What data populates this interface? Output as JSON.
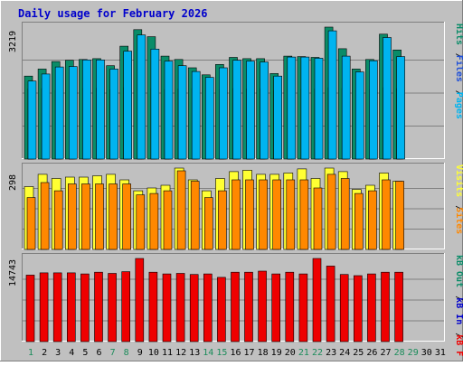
{
  "title": "Daily usage for February 2026",
  "colors": {
    "background": "#c0c0c0",
    "title": "#0000cc",
    "hits": "#0a8c68",
    "files": "#1e4fd8",
    "pages": "#00b4f0",
    "visits": "#ffff33",
    "sites": "#ff8800",
    "kb_f": "#ee0000",
    "kb_in": "#0000cc",
    "kb_out": "#0a8c68",
    "weekend_day": "#1a8c5a",
    "weekday": "#000080",
    "gridline": "#808080"
  },
  "chart_data": [
    {
      "type": "bar",
      "panel": "hits-files-pages",
      "max_label": "3219",
      "legend": [
        {
          "name": "Pages",
          "color": "#00b4f0"
        },
        {
          "name": "Files",
          "color": "#1e4fd8"
        },
        {
          "name": "Hits",
          "color": "#0a8c68"
        }
      ],
      "categories": [
        "1",
        "2",
        "3",
        "4",
        "5",
        "6",
        "7",
        "8",
        "9",
        "10",
        "11",
        "12",
        "13",
        "14",
        "15",
        "16",
        "17",
        "18",
        "19",
        "20",
        "21",
        "22",
        "23",
        "24",
        "25",
        "26",
        "27",
        "28",
        "29",
        "30",
        "31"
      ],
      "series": [
        {
          "name": "Hits",
          "values": [
            2000,
            2170,
            2350,
            2380,
            2400,
            2420,
            2250,
            2720,
            3120,
            2950,
            2480,
            2400,
            2200,
            2030,
            2280,
            2450,
            2420,
            2420,
            2060,
            2480,
            2470,
            2450,
            3180,
            2660,
            2170,
            2400,
            3010,
            2630,
            0,
            0,
            0
          ]
        },
        {
          "name": "Files",
          "values": [
            1690,
            1700,
            1650,
            1750,
            1700,
            1710,
            1670,
            1720,
            1750,
            1700,
            1680,
            1690,
            1700,
            1650,
            1680,
            1700,
            1690,
            1700,
            1650,
            1700,
            1680,
            1690,
            1720,
            1700,
            1650,
            1680,
            1720,
            1700,
            0,
            0,
            0
          ]
        },
        {
          "name": "Pages",
          "values": [
            1880,
            2050,
            2220,
            2230,
            2390,
            2390,
            2170,
            2600,
            2990,
            2650,
            2360,
            2250,
            2110,
            1970,
            2200,
            2380,
            2360,
            2340,
            2000,
            2460,
            2460,
            2430,
            3090,
            2480,
            2100,
            2370,
            2930,
            2470,
            0,
            0,
            0
          ]
        }
      ]
    },
    {
      "type": "bar",
      "panel": "visits-sites",
      "max_label": "298",
      "legend": [
        {
          "name": "Sites",
          "color": "#ff8800"
        },
        {
          "name": "Visits",
          "color": "#ffff33"
        }
      ],
      "categories": [
        "1",
        "2",
        "3",
        "4",
        "5",
        "6",
        "7",
        "8",
        "9",
        "10",
        "11",
        "12",
        "13",
        "14",
        "15",
        "16",
        "17",
        "18",
        "19",
        "20",
        "21",
        "22",
        "23",
        "24",
        "25",
        "26",
        "27",
        "28",
        "29",
        "30",
        "31"
      ],
      "series": [
        {
          "name": "Visits",
          "values": [
            230,
            275,
            260,
            265,
            265,
            270,
            275,
            255,
            215,
            225,
            235,
            298,
            255,
            215,
            260,
            285,
            290,
            275,
            275,
            280,
            295,
            260,
            298,
            285,
            220,
            235,
            280,
            250,
            0,
            0,
            0
          ]
        },
        {
          "name": "Sites",
          "values": [
            190,
            245,
            215,
            240,
            240,
            240,
            240,
            240,
            200,
            205,
            215,
            288,
            250,
            190,
            215,
            255,
            255,
            255,
            255,
            255,
            255,
            225,
            275,
            260,
            205,
            215,
            255,
            250,
            0,
            0,
            0
          ]
        }
      ]
    },
    {
      "type": "bar",
      "panel": "kbf-kbin-kbout",
      "max_label": "14743",
      "legend": [
        {
          "name": "kB F",
          "color": "#ee0000"
        },
        {
          "name": "kB In",
          "color": "#0000cc"
        },
        {
          "name": "kB Out",
          "color": "#0a8c68"
        }
      ],
      "categories": [
        "1",
        "2",
        "3",
        "4",
        "5",
        "6",
        "7",
        "8",
        "9",
        "10",
        "11",
        "12",
        "13",
        "14",
        "15",
        "16",
        "17",
        "18",
        "19",
        "20",
        "21",
        "22",
        "23",
        "24",
        "25",
        "26",
        "27",
        "28",
        "29",
        "30",
        "31"
      ],
      "series": [
        {
          "name": "kB F",
          "values": [
            11800,
            12200,
            12200,
            12200,
            12000,
            12300,
            12100,
            12400,
            14743,
            12300,
            12000,
            12100,
            11900,
            12000,
            11400,
            12300,
            12300,
            12500,
            12000,
            12300,
            12000,
            14743,
            13400,
            11900,
            11700,
            12000,
            12300,
            12300,
            0,
            0,
            0
          ]
        }
      ]
    }
  ],
  "x_labels": [
    {
      "text": "1",
      "weekend": true
    },
    {
      "text": "2",
      "weekend": false
    },
    {
      "text": "3",
      "weekend": false
    },
    {
      "text": "4",
      "weekend": false
    },
    {
      "text": "5",
      "weekend": false
    },
    {
      "text": "6",
      "weekend": false
    },
    {
      "text": "7",
      "weekend": true
    },
    {
      "text": "8",
      "weekend": true
    },
    {
      "text": "9",
      "weekend": false
    },
    {
      "text": "10",
      "weekend": false
    },
    {
      "text": "11",
      "weekend": false
    },
    {
      "text": "12",
      "weekend": false
    },
    {
      "text": "13",
      "weekend": false
    },
    {
      "text": "14",
      "weekend": true
    },
    {
      "text": "15",
      "weekend": true
    },
    {
      "text": "16",
      "weekend": false
    },
    {
      "text": "17",
      "weekend": false
    },
    {
      "text": "18",
      "weekend": false
    },
    {
      "text": "19",
      "weekend": false
    },
    {
      "text": "20",
      "weekend": false
    },
    {
      "text": "21",
      "weekend": true
    },
    {
      "text": "22",
      "weekend": true
    },
    {
      "text": "23",
      "weekend": false
    },
    {
      "text": "24",
      "weekend": false
    },
    {
      "text": "25",
      "weekend": false
    },
    {
      "text": "26",
      "weekend": false
    },
    {
      "text": "27",
      "weekend": false
    },
    {
      "text": "28",
      "weekend": true
    },
    {
      "text": "29",
      "weekend": true
    },
    {
      "text": "30",
      "weekend": false
    },
    {
      "text": "31",
      "weekend": false
    }
  ]
}
